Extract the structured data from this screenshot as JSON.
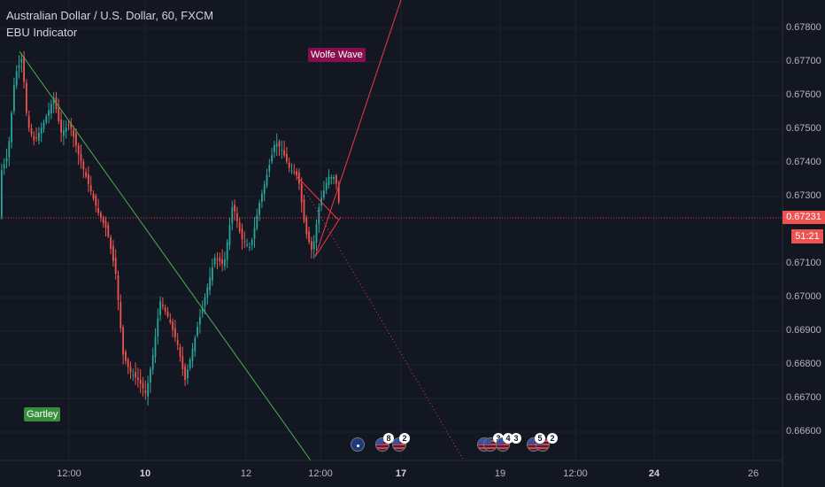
{
  "header": {
    "title": "Australian Dollar / U.S. Dollar, 60, FXCM",
    "indicator": "EBU Indicator"
  },
  "tags": {
    "wolfe": "Wolfe Wave",
    "gartley": "Gartley"
  },
  "price_axis": {
    "labels": [
      "0.67800",
      "0.67700",
      "0.67600",
      "0.67500",
      "0.67400",
      "0.67300",
      "0.67100",
      "0.67000",
      "0.66900",
      "0.66800",
      "0.66700",
      "0.66600"
    ],
    "current_price": "0.67231",
    "countdown": "51:21"
  },
  "time_axis": {
    "labels": [
      {
        "text": "12:00",
        "bold": false
      },
      {
        "text": "10",
        "bold": true
      },
      {
        "text": "12",
        "bold": false
      },
      {
        "text": "12:00",
        "bold": false
      },
      {
        "text": "17",
        "bold": true
      },
      {
        "text": "19",
        "bold": false
      },
      {
        "text": "12:00",
        "bold": false
      },
      {
        "text": "24",
        "bold": true
      },
      {
        "text": "26",
        "bold": false
      }
    ]
  },
  "events": {
    "au": "",
    "us1_count": "8",
    "us2_count": "2",
    "us3_count": "3",
    "us4_count": "4",
    "us5_count": "3",
    "us6_count": "5",
    "us7_count": "2"
  },
  "colors": {
    "background": "#131722",
    "up": "#26a69a",
    "down": "#ef5350",
    "grid": "#1e222d",
    "gartley_line": "#4caf50",
    "wolfe_line": "#f23645"
  },
  "chart_data": {
    "type": "candlestick",
    "symbol": "Australian Dollar / U.S. Dollar",
    "interval": "60",
    "source": "FXCM",
    "ylim": [
      0.6655,
      0.6785
    ],
    "current_price": 0.67231,
    "overlays": [
      "Wolfe Wave",
      "Gartley"
    ]
  }
}
